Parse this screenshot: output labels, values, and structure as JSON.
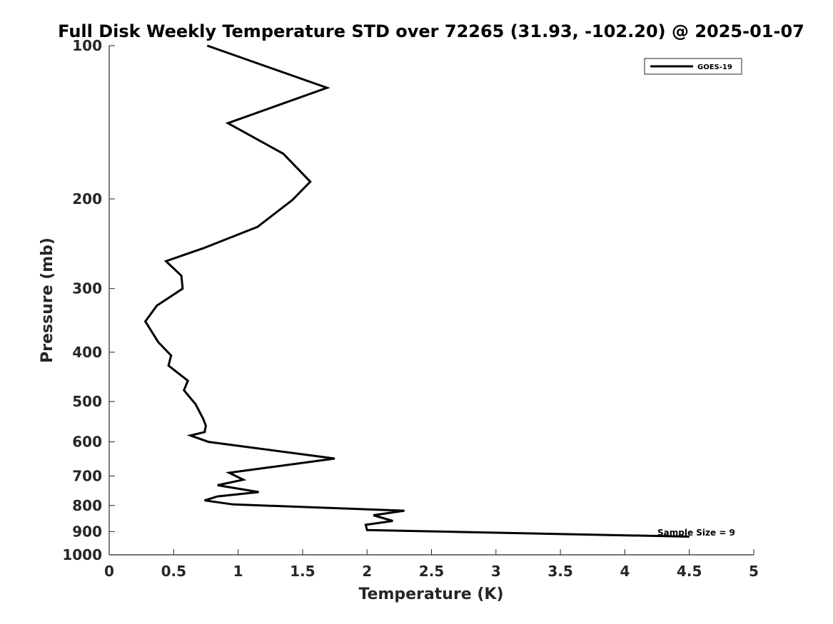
{
  "chart_data": {
    "type": "line",
    "title": "Full Disk Weekly Temperature STD over 72265 (31.93, -102.20) @ 2025-01-07",
    "xlabel": "Temperature (K)",
    "ylabel": "Pressure (mb)",
    "xlim": [
      0,
      5
    ],
    "ylim": [
      100,
      1000
    ],
    "y_scale": "log",
    "y_reversed": true,
    "x_ticks": [
      "0",
      "0.5",
      "1",
      "1.5",
      "2",
      "2.5",
      "3",
      "3.5",
      "4",
      "4.5",
      "5"
    ],
    "y_ticks": [
      "100",
      "200",
      "300",
      "400",
      "500",
      "600",
      "700",
      "800",
      "900",
      "1000"
    ],
    "grid": false,
    "legend": {
      "placement": "top-right",
      "entries": [
        "GOES-19"
      ]
    },
    "annotation": "Sample Size = 9",
    "series": [
      {
        "name": "GOES-19",
        "color": "#000000",
        "points": [
          [
            0.76,
            100
          ],
          [
            1.69,
            121
          ],
          [
            0.92,
            142
          ],
          [
            1.35,
            163
          ],
          [
            1.56,
            185
          ],
          [
            1.42,
            201
          ],
          [
            1.15,
            227
          ],
          [
            0.73,
            250
          ],
          [
            0.44,
            265
          ],
          [
            0.56,
            283
          ],
          [
            0.57,
            300
          ],
          [
            0.37,
            324
          ],
          [
            0.28,
            348
          ],
          [
            0.38,
            382
          ],
          [
            0.48,
            406
          ],
          [
            0.46,
            425
          ],
          [
            0.61,
            455
          ],
          [
            0.58,
            475
          ],
          [
            0.67,
            506
          ],
          [
            0.73,
            541
          ],
          [
            0.75,
            558
          ],
          [
            0.74,
            574
          ],
          [
            0.63,
            583
          ],
          [
            0.77,
            600
          ],
          [
            1.75,
            647
          ],
          [
            0.93,
            690
          ],
          [
            1.04,
            712
          ],
          [
            0.84,
            730
          ],
          [
            1.16,
            753
          ],
          [
            0.84,
            768
          ],
          [
            0.74,
            782
          ],
          [
            0.96,
            796
          ],
          [
            2.29,
            819
          ],
          [
            2.05,
            836
          ],
          [
            2.2,
            858
          ],
          [
            1.99,
            873
          ],
          [
            2.0,
            894
          ],
          [
            4.5,
            921
          ]
        ]
      }
    ]
  }
}
